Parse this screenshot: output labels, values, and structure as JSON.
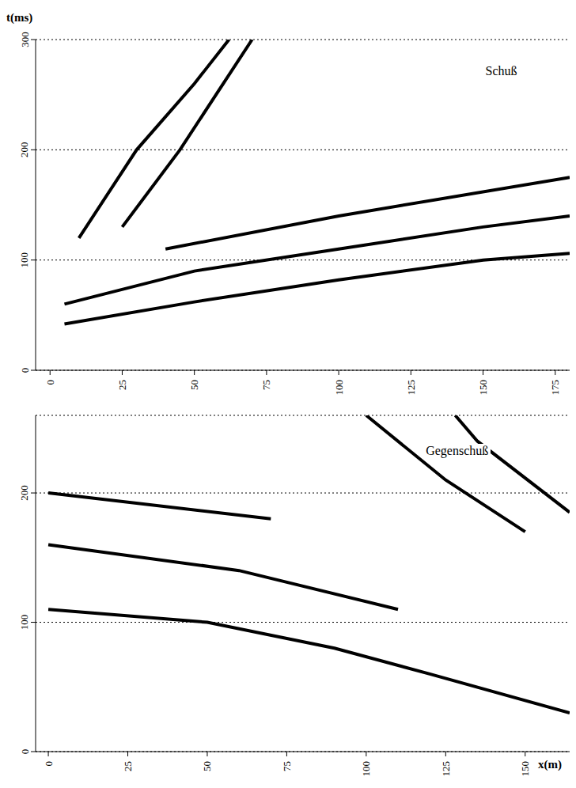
{
  "chart_data": [
    {
      "type": "line",
      "title": "Schuß",
      "y_label": "t(ms)",
      "grid": true,
      "xlim": [
        -5,
        180
      ],
      "xticks": [
        0,
        25,
        50,
        75,
        100,
        125,
        150,
        175
      ],
      "ylim": [
        0,
        300
      ],
      "yticks": [
        0,
        100,
        200,
        300
      ],
      "series": [
        {
          "color": "#000000",
          "x": [
            5,
            50,
            100,
            150,
            180
          ],
          "values": [
            42,
            62,
            82,
            100,
            106
          ]
        },
        {
          "color": "#000000",
          "x": [
            5,
            50,
            100,
            150,
            180
          ],
          "values": [
            60,
            90,
            110,
            130,
            140
          ]
        },
        {
          "color": "#000000",
          "x": [
            40,
            100,
            180
          ],
          "values": [
            110,
            140,
            175
          ]
        },
        {
          "color": "#000000",
          "x": [
            10,
            30,
            50,
            62
          ],
          "values": [
            120,
            200,
            260,
            300
          ]
        },
        {
          "color": "#000000",
          "x": [
            25,
            45,
            70
          ],
          "values": [
            130,
            200,
            300
          ]
        }
      ]
    },
    {
      "type": "line",
      "title": "Gegenschuß",
      "x_label": "x(m)",
      "grid": true,
      "xlim": [
        -4,
        164
      ],
      "xticks": [
        0,
        25,
        50,
        75,
        100,
        125,
        150
      ],
      "ylim": [
        0,
        260
      ],
      "yticks": [
        0,
        100,
        200
      ],
      "series": [
        {
          "color": "#000000",
          "x": [
            164,
            120,
            90,
            50,
            0
          ],
          "values": [
            30,
            60,
            80,
            100,
            110
          ]
        },
        {
          "color": "#000000",
          "x": [
            110,
            60,
            0
          ],
          "values": [
            110,
            140,
            160
          ]
        },
        {
          "color": "#000000",
          "x": [
            70,
            0
          ],
          "values": [
            180,
            200
          ]
        },
        {
          "color": "#000000",
          "x": [
            150,
            125,
            100
          ],
          "values": [
            170,
            210,
            260
          ]
        },
        {
          "color": "#000000",
          "x": [
            164,
            135,
            128
          ],
          "values": [
            185,
            240,
            260
          ]
        }
      ]
    }
  ]
}
